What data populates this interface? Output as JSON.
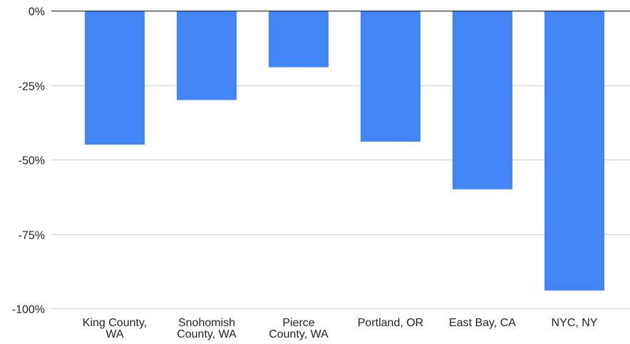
{
  "chart_data": {
    "type": "bar",
    "categories": [
      [
        "King County,",
        "WA"
      ],
      [
        "Snohomish",
        "County, WA"
      ],
      [
        "Pierce",
        "County, WA"
      ],
      [
        "Portland, OR"
      ],
      [
        "East Bay, CA"
      ],
      [
        "NYC, NY"
      ]
    ],
    "values": [
      -45,
      -30,
      -19,
      -44,
      -60,
      -94
    ],
    "ylim": [
      -100,
      0
    ],
    "y_ticks": [
      0,
      -25,
      -50,
      -75,
      -100
    ],
    "y_tick_labels": [
      "0%",
      "-25%",
      "-50%",
      "-75%",
      "-100%"
    ],
    "title": "",
    "xlabel": "",
    "ylabel": "",
    "grid": true,
    "bar_color": "#4285f4",
    "gridline_color": "#cccccc",
    "zero_line_color": "#333333"
  }
}
